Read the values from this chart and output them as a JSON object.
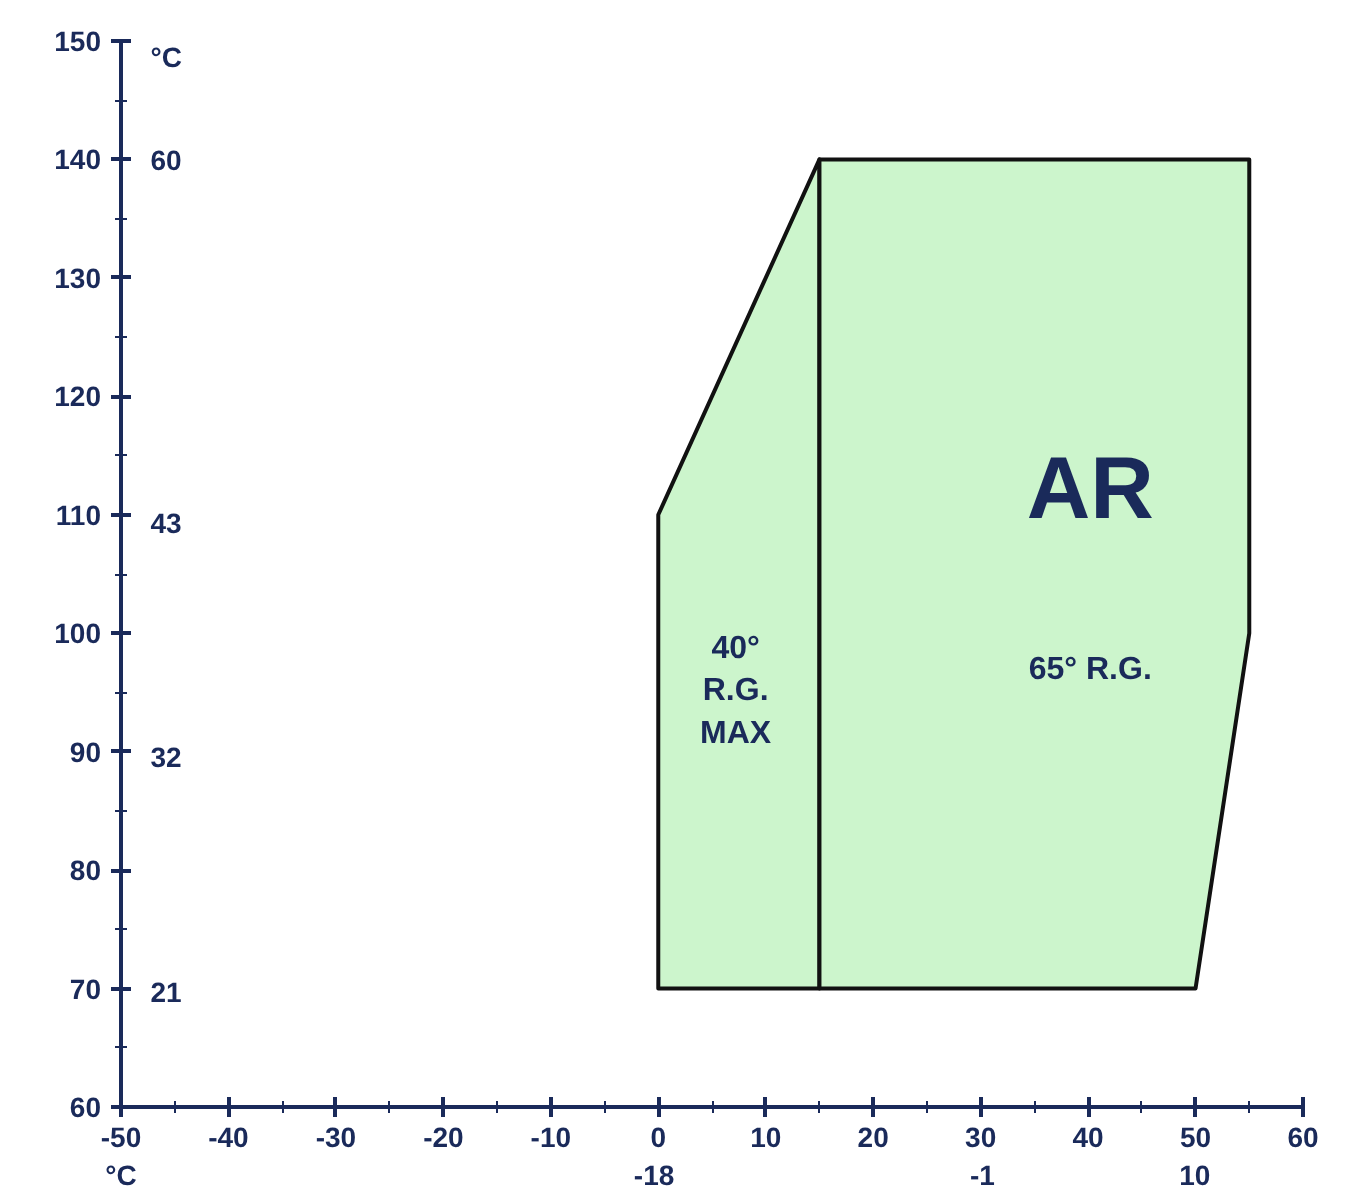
{
  "chart_data": {
    "type": "area",
    "xlim": [
      -50,
      60
    ],
    "ylim": [
      60,
      150
    ],
    "xticks": [
      -50,
      -40,
      -30,
      -20,
      -10,
      0,
      10,
      20,
      30,
      40,
      50,
      60
    ],
    "yticks": [
      60,
      70,
      80,
      90,
      100,
      110,
      120,
      130,
      140,
      150
    ],
    "x2lim": [
      -45.6,
      15.6
    ],
    "x2ticks": [
      -18,
      -1,
      10
    ],
    "x2label": "°C",
    "y2lim": [
      15.6,
      65.6
    ],
    "y2ticks": [
      21,
      32,
      43,
      60
    ],
    "y2label": "°C",
    "grid": false,
    "series": [
      {
        "color": "#ccf5cc",
        "x": [
          0,
          0,
          15,
          15,
          0
        ],
        "values": [
          70,
          110,
          140,
          70,
          70
        ]
      },
      {
        "color": "#ccf5cc",
        "x": [
          15,
          15,
          55,
          55,
          50,
          15
        ],
        "values": [
          70,
          140,
          140,
          100,
          70,
          70
        ]
      }
    ],
    "annotations": [
      "AR",
      "65° R.G.",
      "40°\nR.G.\nMAX"
    ]
  }
}
